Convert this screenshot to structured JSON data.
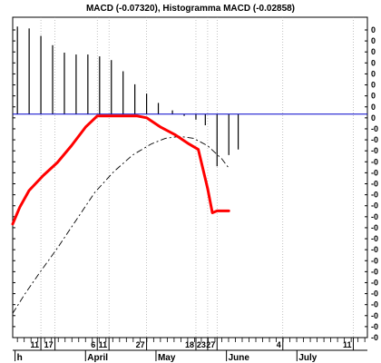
{
  "chart_data": {
    "type": "line",
    "title": "MACD (-0.07320), Histogramma MACD (-0.02858)",
    "y_tick_labels": [
      "0",
      "0",
      "0",
      "0",
      "0",
      "0",
      "0",
      "0",
      "0",
      "-0",
      "-0",
      "-0",
      "-0",
      "-0",
      "-0",
      "-0",
      "-0",
      "-0",
      "-0",
      "-0",
      "-0",
      "-0",
      "-0",
      "-0",
      "-0",
      "-0",
      "-0",
      "-0",
      "-0"
    ],
    "x_day_ticks": [
      {
        "day": 11,
        "label": "11"
      },
      {
        "day": 17,
        "label": "17"
      },
      {
        "day": 35,
        "label": "6"
      },
      {
        "day": 40,
        "label": "11"
      },
      {
        "day": 56,
        "label": "27"
      },
      {
        "day": 77,
        "label": "18"
      },
      {
        "day": 82,
        "label": "23"
      },
      {
        "day": 86,
        "label": "27"
      },
      {
        "day": 114,
        "label": "4"
      },
      {
        "day": 144,
        "label": "11"
      }
    ],
    "x_month_labels": [
      {
        "day": 0,
        "label": "h"
      },
      {
        "day": 30,
        "label": "April"
      },
      {
        "day": 60,
        "label": "May"
      },
      {
        "day": 90,
        "label": "June"
      },
      {
        "day": 120,
        "label": "July"
      }
    ],
    "x_range": [
      -1,
      150
    ],
    "y_range": [
      -0.12,
      0.052
    ],
    "zero_line": 0,
    "series": [
      {
        "role": "macd",
        "color": "#ff0000",
        "style": "solid",
        "points": [
          [
            -1,
            -0.059
          ],
          [
            2,
            -0.05
          ],
          [
            6,
            -0.041
          ],
          [
            12,
            -0.033
          ],
          [
            18,
            -0.026
          ],
          [
            24,
            -0.017
          ],
          [
            30,
            -0.007
          ],
          [
            35,
            -0.001
          ],
          [
            40,
            -0.001
          ],
          [
            46,
            -0.001
          ],
          [
            52,
            -0.001
          ],
          [
            56,
            -0.002
          ],
          [
            62,
            -0.007
          ],
          [
            68,
            -0.011
          ],
          [
            74,
            -0.016
          ],
          [
            78,
            -0.019
          ],
          [
            82,
            -0.04
          ],
          [
            84,
            -0.053
          ],
          [
            86,
            -0.052
          ],
          [
            88,
            -0.052
          ],
          [
            91,
            -0.052
          ]
        ]
      },
      {
        "role": "signal",
        "color": "#000000",
        "style": "dashed",
        "points": [
          [
            -1,
            -0.107
          ],
          [
            4,
            -0.097
          ],
          [
            10,
            -0.086
          ],
          [
            18,
            -0.072
          ],
          [
            26,
            -0.057
          ],
          [
            34,
            -0.042
          ],
          [
            42,
            -0.031
          ],
          [
            50,
            -0.022
          ],
          [
            58,
            -0.016
          ],
          [
            64,
            -0.013
          ],
          [
            70,
            -0.012
          ],
          [
            76,
            -0.013
          ],
          [
            82,
            -0.017
          ],
          [
            88,
            -0.024
          ],
          [
            91,
            -0.029
          ]
        ]
      },
      {
        "role": "histogram",
        "color": "#000000",
        "style": "bars",
        "points": [
          [
            1,
            0.047
          ],
          [
            6,
            0.046
          ],
          [
            11,
            0.042
          ],
          [
            16,
            0.037
          ],
          [
            21,
            0.033
          ],
          [
            26,
            0.032
          ],
          [
            31,
            0.032
          ],
          [
            36,
            0.031
          ],
          [
            41,
            0.029
          ],
          [
            46,
            0.023
          ],
          [
            51,
            0.016
          ],
          [
            56,
            0.011
          ],
          [
            61,
            0.006
          ],
          [
            67,
            0.002
          ],
          [
            72,
            -0.001
          ],
          [
            77,
            -0.003
          ],
          [
            81,
            -0.006
          ],
          [
            86,
            -0.028
          ],
          [
            91,
            -0.022
          ],
          [
            95,
            -0.019
          ]
        ]
      }
    ],
    "zero_line_color": "#0000cc"
  }
}
